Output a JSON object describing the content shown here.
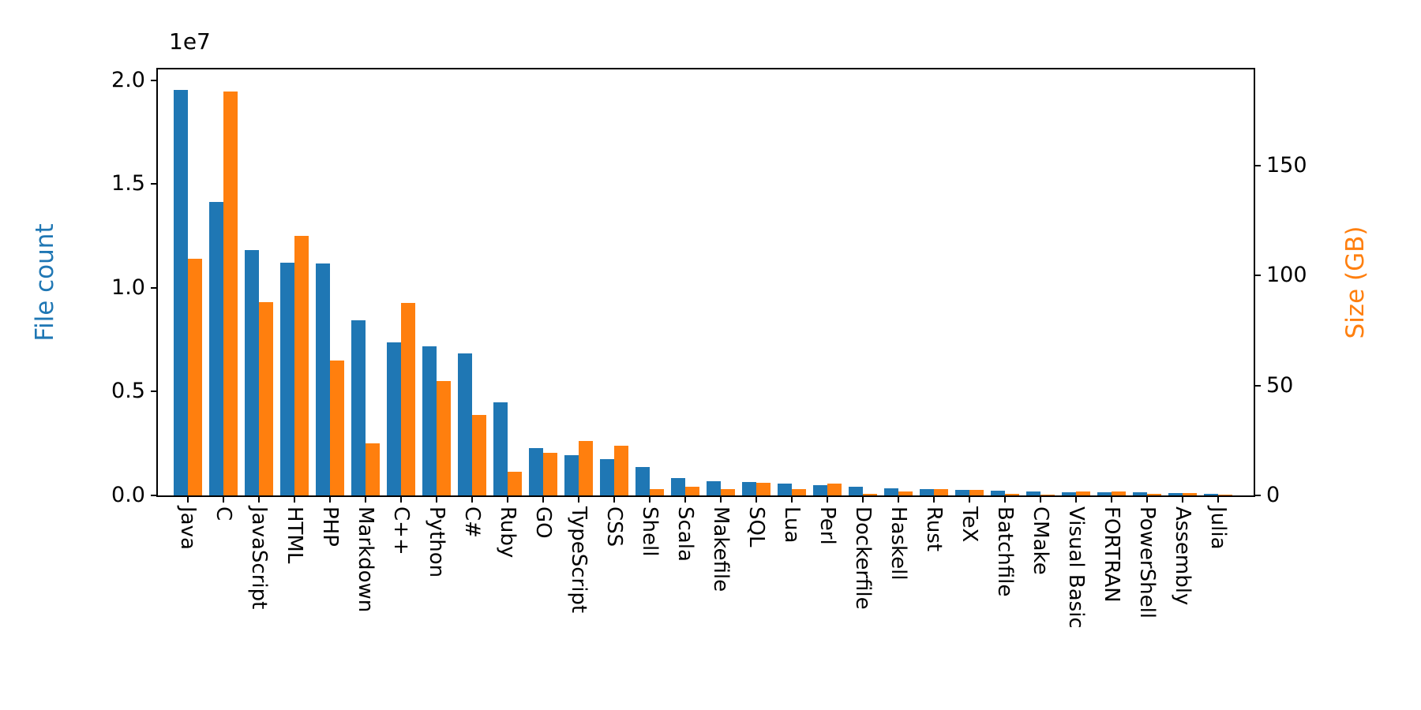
{
  "chart_data": {
    "type": "bar",
    "title": "",
    "categories": [
      "Java",
      "C",
      "JavaScript",
      "HTML",
      "PHP",
      "Markdown",
      "C++",
      "Python",
      "C#",
      "Ruby",
      "GO",
      "TypeScript",
      "CSS",
      "Shell",
      "Scala",
      "Makefile",
      "SQL",
      "Lua",
      "Perl",
      "Dockerfile",
      "Haskell",
      "Rust",
      "TeX",
      "Batchfile",
      "CMake",
      "Visual Basic",
      "FORTRAN",
      "PowerShell",
      "Assembly",
      "Julia"
    ],
    "series": [
      {
        "name": "File count",
        "axis": "left",
        "color": "#1f77b4",
        "values": [
          19548190,
          14143113,
          11829852,
          11200000,
          11180000,
          8454049,
          7380520,
          7203553,
          6842652,
          4473331,
          2265436,
          1940406,
          1752951,
          1385110,
          835755,
          679430,
          656671,
          558861,
          497490,
          404031,
          340396,
          321765,
          250347,
          236945,
          175282,
          155457,
          138552,
          136846,
          104901,
          82099
        ]
      },
      {
        "name": "Size (GB)",
        "axis": "right",
        "color": "#ff7f0e",
        "values": [
          107.7,
          183.8,
          87.8,
          118.1,
          61.4,
          23.6,
          87.7,
          52.0,
          36.7,
          10.9,
          19.3,
          24.6,
          22.6,
          3.0,
          3.9,
          2.9,
          5.7,
          2.8,
          5.5,
          0.6,
          1.9,
          2.7,
          2.5,
          0.7,
          0.5,
          1.9,
          1.8,
          0.7,
          0.9,
          0.3
        ]
      }
    ],
    "left_axis": {
      "label": "File count",
      "color": "#1f77b4",
      "offset_text": "1e7",
      "ticks": [
        {
          "value": 0,
          "label": "0.0"
        },
        {
          "value": 5000000,
          "label": "0.5"
        },
        {
          "value": 10000000,
          "label": "1.0"
        },
        {
          "value": 15000000,
          "label": "1.5"
        },
        {
          "value": 20000000,
          "label": "2.0"
        }
      ],
      "max": 20530000
    },
    "right_axis": {
      "label": "Size (GB)",
      "color": "#ff7f0e",
      "ticks": [
        {
          "value": 0,
          "label": "0"
        },
        {
          "value": 50,
          "label": "50"
        },
        {
          "value": 100,
          "label": "100"
        },
        {
          "value": 150,
          "label": "150"
        }
      ],
      "max": 193.8
    },
    "x_axis": {
      "tick_label_rotation_deg": 90
    },
    "legend": {
      "visible": false
    },
    "grid": false,
    "background": "#ffffff"
  }
}
